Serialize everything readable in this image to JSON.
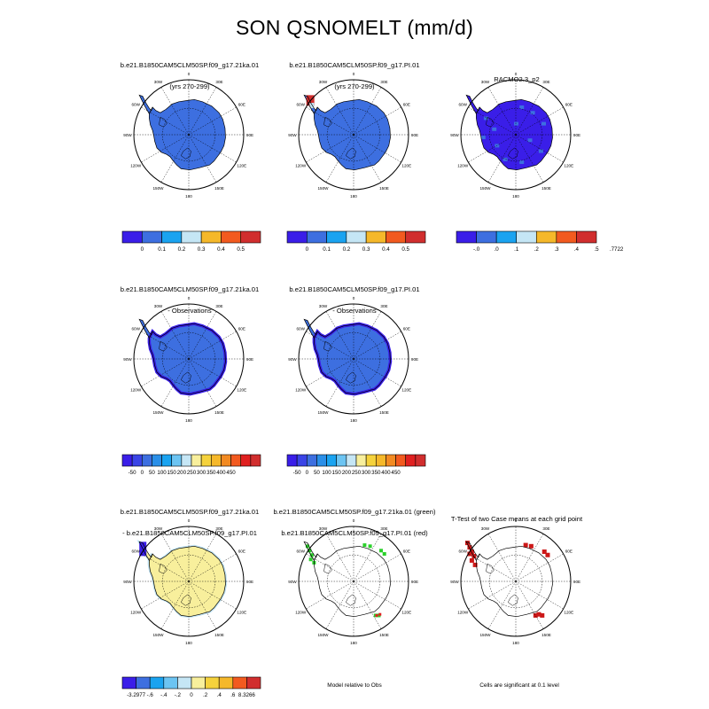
{
  "title": "SON QSNOMELT (mm/d)",
  "panels": [
    {
      "title": "b.e21.B1850CAM5CLM50SP.f09_g17.21ka.01",
      "subtitle": "(yrs 270-299)",
      "style": "uniform",
      "fill": "#3d6fe0"
    },
    {
      "title": "b.e21.B1850CAM5CLM50SP.f09_g17.PI.01",
      "subtitle": "(yrs 270-299)",
      "style": "uniform_red_peninsula",
      "fill": "#3d6fe0"
    },
    {
      "title": "RACMO2.3_p2",
      "subtitle": "",
      "style": "racmo",
      "fill": "#3a1ee8"
    },
    {
      "title": "b.e21.B1850CAM5CLM50SP.f09_g17.21ka.01",
      "subtitle": "- Observations",
      "style": "bias",
      "fill": "#3d6fe0"
    },
    {
      "title": "b.e21.B1850CAM5CLM50SP.f09_g17.PI.01",
      "subtitle": "- Observations",
      "style": "bias",
      "fill": "#3d6fe0"
    },
    {
      "title": "b.e21.B1850CAM5CLM50SP.f09_g17.21ka.01",
      "subtitle": "- b.e21.B1850CAM5CLM50SP.f09_g17.PI.01",
      "style": "diff",
      "fill": "#f8ef9c"
    },
    {
      "title": "b.e21.B1850CAM5CLM50SP.f09_g17.21ka.01 (green)",
      "subtitle": "b.e21.B1850CAM5CLM50SP.f09_g17.PI.01 (red)",
      "style": "green_red",
      "fill": "none"
    },
    {
      "title": "T-Test of two Case means at each grid point",
      "subtitle": "",
      "style": "ttest",
      "fill": "none"
    }
  ],
  "map_labels": {
    "lon": [
      "0",
      "30E",
      "60E",
      "90E",
      "120E",
      "150E",
      "180",
      "150W",
      "120W",
      "90W",
      "60W",
      "30W"
    ]
  },
  "colorbars": [
    {
      "colors": [
        "#3a1ee8",
        "#3d6fe0",
        "#1aa3f0",
        "#c5e6f5",
        "#f5b82a",
        "#f25a1f",
        "#d12e2e"
      ],
      "labels": [
        "0",
        "0.1",
        "0.2",
        "0.3",
        "0.4",
        "0.5"
      ]
    },
    {
      "colors": [
        "#3a1ee8",
        "#3d6fe0",
        "#1aa3f0",
        "#c5e6f5",
        "#f5b82a",
        "#f25a1f",
        "#d12e2e"
      ],
      "labels": [
        "0",
        "0.1",
        "0.2",
        "0.3",
        "0.4",
        "0.5"
      ]
    },
    {
      "colors": [
        "#3a1ee8",
        "#3d6fe0",
        "#1aa3f0",
        "#c5e6f5",
        "#f5b82a",
        "#f25a1f",
        "#d12e2e"
      ],
      "labels": [
        "-.0",
        ".0",
        ".1",
        ".2",
        ".3",
        ".4",
        ".5",
        ".7722"
      ]
    },
    {
      "colors": [
        "#3a1ee8",
        "#3a44e6",
        "#3d6fe0",
        "#2a8fe8",
        "#1aa3f0",
        "#6cc4f2",
        "#c5e6f5",
        "#f8ef9c",
        "#f5d23c",
        "#f5b82a",
        "#f28a22",
        "#f25a1f",
        "#e02020",
        "#d12e2e"
      ],
      "labels": [
        "-50",
        "0",
        "50",
        "100",
        "150",
        "200",
        "250",
        "300",
        "350",
        "400",
        "450"
      ]
    },
    {
      "colors": [
        "#3a1ee8",
        "#3a44e6",
        "#3d6fe0",
        "#2a8fe8",
        "#1aa3f0",
        "#6cc4f2",
        "#c5e6f5",
        "#f8ef9c",
        "#f5d23c",
        "#f5b82a",
        "#f28a22",
        "#f25a1f",
        "#e02020",
        "#d12e2e"
      ],
      "labels": [
        "-50",
        "0",
        "50",
        "100",
        "150",
        "200",
        "250",
        "300",
        "350",
        "400",
        "450"
      ]
    },
    {
      "colors": [
        "#3a1ee8",
        "#3d6fe0",
        "#1aa3f0",
        "#6cc4f2",
        "#c5e6f5",
        "#f8ef9c",
        "#f5d23c",
        "#f5b82a",
        "#f25a1f",
        "#d12e2e"
      ],
      "labels": [
        "-3.2977",
        "-.6",
        "-.4",
        "-.2",
        "0",
        ".2",
        ".4",
        ".6",
        "8.3266"
      ]
    }
  ],
  "notes": {
    "model_vs_obs": "Model relative to Obs",
    "significance": "Cells are significant at 0.1 level"
  },
  "chart_data": {
    "type": "heatmap",
    "title": "SON QSNOMELT (mm/d)",
    "projection": "south polar stereographic",
    "variable": "QSNOMELT",
    "units": "mm/d",
    "season": "SON",
    "panels": [
      {
        "name": "b.e21.B1850CAM5CLM50SP.f09_g17.21ka.01 (yrs 270-299)",
        "dominant_value_range": [
          0,
          0.1
        ],
        "contour_levels": [
          0,
          0.1,
          0.2,
          0.3,
          0.4,
          0.5
        ]
      },
      {
        "name": "b.e21.B1850CAM5CLM50SP.f09_g17.PI.01 (yrs 270-299)",
        "dominant_value_range": [
          0,
          0.1
        ],
        "max_region": "Antarctic Peninsula",
        "max_range": [
          0.5,
          0.6
        ],
        "contour_levels": [
          0,
          0.1,
          0.2,
          0.3,
          0.4,
          0.5
        ]
      },
      {
        "name": "RACMO2.3_p2",
        "dominant_value_range": [
          -0.0,
          0.0
        ],
        "colorbar_max": 0.7722,
        "contour_levels": [
          -0.0,
          0.0,
          0.1,
          0.2,
          0.3,
          0.4,
          0.5,
          0.7722
        ]
      },
      {
        "name": "b.e21.B1850CAM5CLM50SP.f09_g17.21ka.01 - Observations",
        "dominant_value_range": [
          0,
          50
        ],
        "contour_levels": [
          -50,
          0,
          50,
          100,
          150,
          200,
          250,
          300,
          350,
          400,
          450
        ]
      },
      {
        "name": "b.e21.B1850CAM5CLM50SP.f09_g17.PI.01 - Observations",
        "dominant_value_range": [
          0,
          50
        ],
        "contour_levels": [
          -50,
          0,
          50,
          100,
          150,
          200,
          250,
          300,
          350,
          400,
          450
        ]
      },
      {
        "name": "b.e21.B1850CAM5CLM50SP.f09_g17.21ka.01 - b.e21.B1850CAM5CLM50SP.f09_g17.PI.01",
        "dominant_value_range": [
          0,
          0.2
        ],
        "min": -3.2977,
        "max": 8.3266,
        "contour_levels": [
          -3.2977,
          -0.6,
          -0.4,
          -0.2,
          0,
          0.2,
          0.4,
          0.6,
          8.3266
        ]
      },
      {
        "name": "Model relative to Obs",
        "legend": [
          "21ka.01 (green)",
          "PI.01 (red)"
        ]
      },
      {
        "name": "T-Test of two Case means at each grid point",
        "significance_level": 0.1
      }
    ]
  }
}
